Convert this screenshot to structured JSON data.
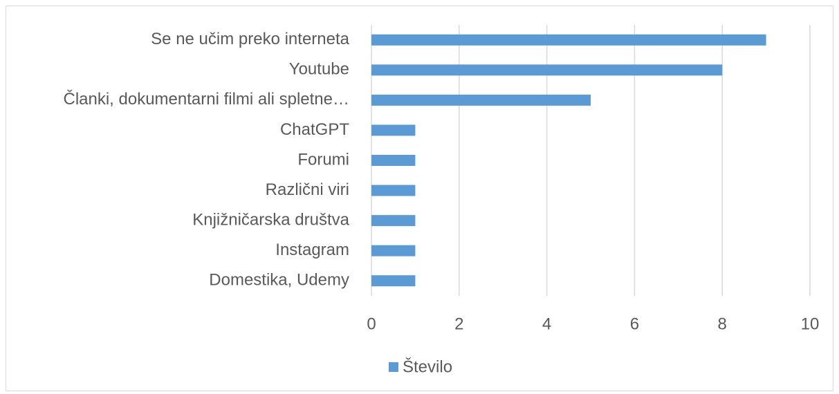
{
  "chart_data": {
    "type": "bar",
    "orientation": "horizontal",
    "categories": [
      "Se ne učim preko interneta",
      "Youtube",
      "Članki, dokumentarni filmi ali spletne…",
      "ChatGPT",
      "Forumi",
      "Različni viri",
      "Knjižničarska društva",
      "Instagram",
      "Domestika, Udemy"
    ],
    "series": [
      {
        "name": "Število",
        "color": "#5b9bd5",
        "values": [
          9,
          8,
          5,
          1,
          1,
          1,
          1,
          1,
          1
        ]
      }
    ],
    "xlim": [
      0,
      10
    ],
    "xticks": [
      0,
      2,
      4,
      6,
      8,
      10
    ],
    "grid": true,
    "legend": "bottom"
  }
}
